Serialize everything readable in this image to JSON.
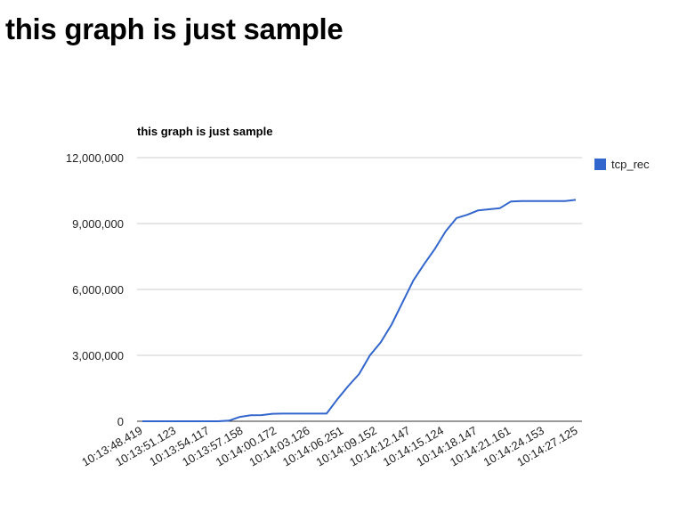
{
  "page": {
    "heading": "this graph is just sample"
  },
  "chart_data": {
    "type": "line",
    "title": "this graph is just sample",
    "xlabel": "",
    "ylabel": "",
    "ylim": [
      0,
      12000000
    ],
    "yticks": [
      0,
      3000000,
      6000000,
      9000000,
      12000000
    ],
    "ytick_labels": [
      "0",
      "3,000,000",
      "6,000,000",
      "9,000,000",
      "12,000,000"
    ],
    "xtick_labels": [
      "10:13:48.419",
      "10:13:51.123",
      "10:13:54.117",
      "10:13:57.158",
      "10:14:00.172",
      "10:14:03.126",
      "10:14:06.251",
      "10:14:09.152",
      "10:14:12.147",
      "10:14:15.124",
      "10:14:18.147",
      "10:14:21.161",
      "10:14:24.153",
      "10:14:27.125"
    ],
    "grid": true,
    "legend_position": "right",
    "series": [
      {
        "name": "tcp_rec",
        "color": "#3366cc",
        "values": [
          0,
          0,
          0,
          0,
          0,
          0,
          0,
          0,
          30000,
          200000,
          270000,
          280000,
          340000,
          350000,
          350000,
          350000,
          350000,
          350000,
          1000000,
          1600000,
          2150000,
          3000000,
          3600000,
          4400000,
          5400000,
          6400000,
          7150000,
          7850000,
          8650000,
          9250000,
          9400000,
          9600000,
          9650000,
          9700000,
          10000000,
          10020000,
          10020000,
          10020000,
          10020000,
          10020000,
          10080000
        ]
      }
    ]
  }
}
